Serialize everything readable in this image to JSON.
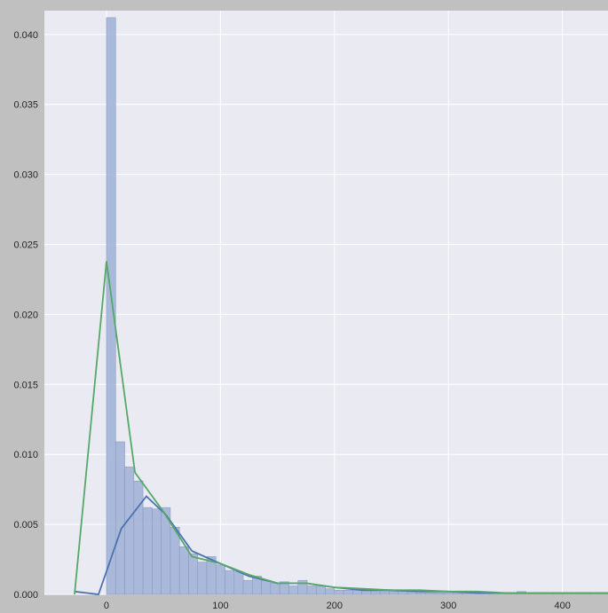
{
  "chart_data": {
    "type": "histogram with line overlays",
    "title": "",
    "xlabel": "",
    "ylabel": "",
    "xlim": [
      -54.5,
      440
    ],
    "ylim": [
      0,
      0.0417
    ],
    "grid": true,
    "legend": "none",
    "x_ticks": [
      "0",
      "100",
      "200",
      "300",
      "400"
    ],
    "x_tick_values": [
      0,
      100,
      200,
      300,
      400
    ],
    "y_ticks": [
      "0.000",
      "0.005",
      "0.010",
      "0.015",
      "0.020",
      "0.025",
      "0.030",
      "0.035",
      "0.040"
    ],
    "y_tick_values": [
      0,
      0.005,
      0.01,
      0.015,
      0.02,
      0.025,
      0.03,
      0.035,
      0.04
    ],
    "histogram": {
      "bin_start": 0,
      "bin_width": 8,
      "values": [
        0.0412,
        0.0109,
        0.0091,
        0.0081,
        0.0062,
        0.0061,
        0.0062,
        0.0048,
        0.0034,
        0.0029,
        0.0023,
        0.0027,
        0.0021,
        0.0017,
        0.0016,
        0.001,
        0.0013,
        0.001,
        0.0008,
        0.0009,
        0.0006,
        0.001,
        0.0006,
        0.0006,
        0.0004,
        0.0003,
        0.0003,
        0.0003,
        0.0004,
        0.0002,
        0.0002,
        0.0002,
        0.0002,
        0.0002,
        0.0001,
        0.0001,
        0.0001,
        0.0001,
        0.0001,
        0.0001,
        0.0001,
        0.0001,
        0.0001,
        0.0001,
        0.0001,
        0.0002,
        0.0001,
        0.0001,
        0.0001,
        0.0001,
        0.0001,
        0.0001,
        0.0001,
        0.0001,
        0.0001
      ],
      "color": "#a3b4d6"
    },
    "series": [
      {
        "color": "#4c72b0",
        "x": [
          -28,
          -7,
          13,
          35,
          52,
          75,
          100,
          125,
          150,
          175,
          200,
          225,
          250,
          275,
          300,
          325,
          350,
          375,
          400,
          440
        ],
        "y": [
          0.0002,
          0.0,
          0.0047,
          0.007,
          0.0057,
          0.0031,
          0.0022,
          0.0013,
          0.0008,
          0.0008,
          0.0005,
          0.0003,
          0.0003,
          0.0002,
          0.0002,
          0.0001,
          0.0001,
          0.0001,
          0.0001,
          0.0001
        ]
      },
      {
        "color": "#55a868",
        "x": [
          -28,
          0,
          25,
          50,
          75,
          100,
          125,
          150,
          175,
          200,
          225,
          250,
          275,
          300,
          325,
          350,
          375,
          400,
          440
        ],
        "y": [
          0.0,
          0.0238,
          0.0087,
          0.0059,
          0.0027,
          0.0022,
          0.0014,
          0.0008,
          0.0008,
          0.0005,
          0.0004,
          0.0003,
          0.0003,
          0.0002,
          0.0002,
          0.0001,
          0.0001,
          0.0001,
          0.0001
        ]
      }
    ]
  }
}
